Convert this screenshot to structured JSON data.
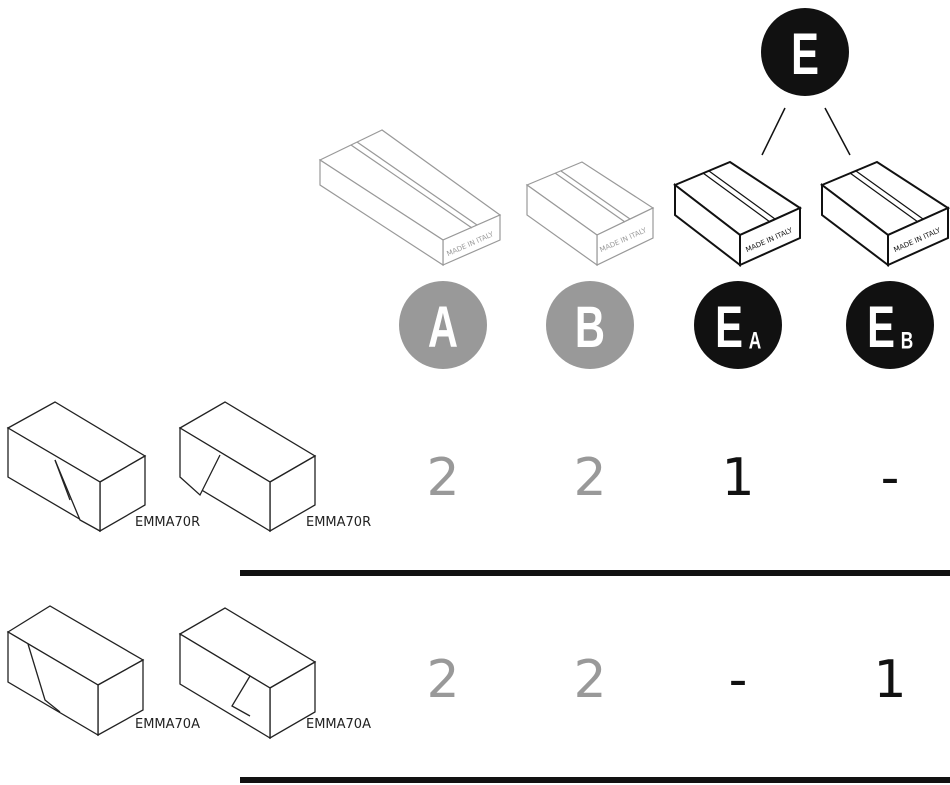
{
  "parent": {
    "letter": "E"
  },
  "boxes": [
    {
      "letter": "A",
      "box_text": "MADE IN ITALY"
    },
    {
      "letter": "B",
      "box_text": "MADE IN ITALY"
    },
    {
      "letter": "E",
      "sub": "A",
      "box_text": "MADE IN ITALY"
    },
    {
      "letter": "E",
      "sub": "B",
      "box_text": "MADE IN ITALY"
    }
  ],
  "rows": [
    {
      "items": [
        "EMMA70R",
        "EMMA70R"
      ],
      "counts": [
        2,
        2,
        1,
        "-"
      ]
    },
    {
      "items": [
        "EMMA70A",
        "EMMA70A"
      ],
      "counts": [
        2,
        2,
        "-",
        1
      ]
    }
  ]
}
